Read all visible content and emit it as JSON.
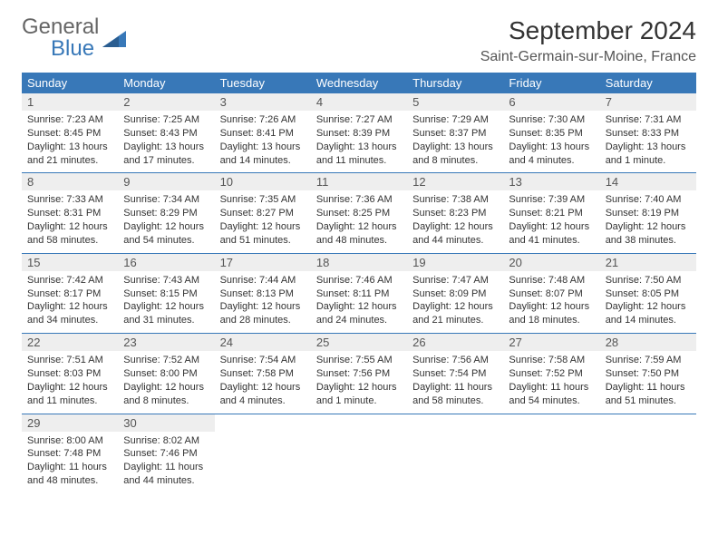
{
  "brand": {
    "top": "General",
    "bottom": "Blue"
  },
  "title": "September 2024",
  "location": "Saint-Germain-sur-Moine, France",
  "colors": {
    "header_bg": "#3878b8",
    "header_text": "#ffffff",
    "daynum_bg": "#eeeeee",
    "rule": "#3878b8",
    "body_text": "#333333"
  },
  "dayNames": [
    "Sunday",
    "Monday",
    "Tuesday",
    "Wednesday",
    "Thursday",
    "Friday",
    "Saturday"
  ],
  "weeks": [
    [
      {
        "n": "1",
        "sunrise": "7:23 AM",
        "sunset": "8:45 PM",
        "daylight": "13 hours and 21 minutes."
      },
      {
        "n": "2",
        "sunrise": "7:25 AM",
        "sunset": "8:43 PM",
        "daylight": "13 hours and 17 minutes."
      },
      {
        "n": "3",
        "sunrise": "7:26 AM",
        "sunset": "8:41 PM",
        "daylight": "13 hours and 14 minutes."
      },
      {
        "n": "4",
        "sunrise": "7:27 AM",
        "sunset": "8:39 PM",
        "daylight": "13 hours and 11 minutes."
      },
      {
        "n": "5",
        "sunrise": "7:29 AM",
        "sunset": "8:37 PM",
        "daylight": "13 hours and 8 minutes."
      },
      {
        "n": "6",
        "sunrise": "7:30 AM",
        "sunset": "8:35 PM",
        "daylight": "13 hours and 4 minutes."
      },
      {
        "n": "7",
        "sunrise": "7:31 AM",
        "sunset": "8:33 PM",
        "daylight": "13 hours and 1 minute."
      }
    ],
    [
      {
        "n": "8",
        "sunrise": "7:33 AM",
        "sunset": "8:31 PM",
        "daylight": "12 hours and 58 minutes."
      },
      {
        "n": "9",
        "sunrise": "7:34 AM",
        "sunset": "8:29 PM",
        "daylight": "12 hours and 54 minutes."
      },
      {
        "n": "10",
        "sunrise": "7:35 AM",
        "sunset": "8:27 PM",
        "daylight": "12 hours and 51 minutes."
      },
      {
        "n": "11",
        "sunrise": "7:36 AM",
        "sunset": "8:25 PM",
        "daylight": "12 hours and 48 minutes."
      },
      {
        "n": "12",
        "sunrise": "7:38 AM",
        "sunset": "8:23 PM",
        "daylight": "12 hours and 44 minutes."
      },
      {
        "n": "13",
        "sunrise": "7:39 AM",
        "sunset": "8:21 PM",
        "daylight": "12 hours and 41 minutes."
      },
      {
        "n": "14",
        "sunrise": "7:40 AM",
        "sunset": "8:19 PM",
        "daylight": "12 hours and 38 minutes."
      }
    ],
    [
      {
        "n": "15",
        "sunrise": "7:42 AM",
        "sunset": "8:17 PM",
        "daylight": "12 hours and 34 minutes."
      },
      {
        "n": "16",
        "sunrise": "7:43 AM",
        "sunset": "8:15 PM",
        "daylight": "12 hours and 31 minutes."
      },
      {
        "n": "17",
        "sunrise": "7:44 AM",
        "sunset": "8:13 PM",
        "daylight": "12 hours and 28 minutes."
      },
      {
        "n": "18",
        "sunrise": "7:46 AM",
        "sunset": "8:11 PM",
        "daylight": "12 hours and 24 minutes."
      },
      {
        "n": "19",
        "sunrise": "7:47 AM",
        "sunset": "8:09 PM",
        "daylight": "12 hours and 21 minutes."
      },
      {
        "n": "20",
        "sunrise": "7:48 AM",
        "sunset": "8:07 PM",
        "daylight": "12 hours and 18 minutes."
      },
      {
        "n": "21",
        "sunrise": "7:50 AM",
        "sunset": "8:05 PM",
        "daylight": "12 hours and 14 minutes."
      }
    ],
    [
      {
        "n": "22",
        "sunrise": "7:51 AM",
        "sunset": "8:03 PM",
        "daylight": "12 hours and 11 minutes."
      },
      {
        "n": "23",
        "sunrise": "7:52 AM",
        "sunset": "8:00 PM",
        "daylight": "12 hours and 8 minutes."
      },
      {
        "n": "24",
        "sunrise": "7:54 AM",
        "sunset": "7:58 PM",
        "daylight": "12 hours and 4 minutes."
      },
      {
        "n": "25",
        "sunrise": "7:55 AM",
        "sunset": "7:56 PM",
        "daylight": "12 hours and 1 minute."
      },
      {
        "n": "26",
        "sunrise": "7:56 AM",
        "sunset": "7:54 PM",
        "daylight": "11 hours and 58 minutes."
      },
      {
        "n": "27",
        "sunrise": "7:58 AM",
        "sunset": "7:52 PM",
        "daylight": "11 hours and 54 minutes."
      },
      {
        "n": "28",
        "sunrise": "7:59 AM",
        "sunset": "7:50 PM",
        "daylight": "11 hours and 51 minutes."
      }
    ],
    [
      {
        "n": "29",
        "sunrise": "8:00 AM",
        "sunset": "7:48 PM",
        "daylight": "11 hours and 48 minutes."
      },
      {
        "n": "30",
        "sunrise": "8:02 AM",
        "sunset": "7:46 PM",
        "daylight": "11 hours and 44 minutes."
      },
      null,
      null,
      null,
      null,
      null
    ]
  ],
  "labels": {
    "sunrise": "Sunrise:",
    "sunset": "Sunset:",
    "daylight": "Daylight:"
  }
}
